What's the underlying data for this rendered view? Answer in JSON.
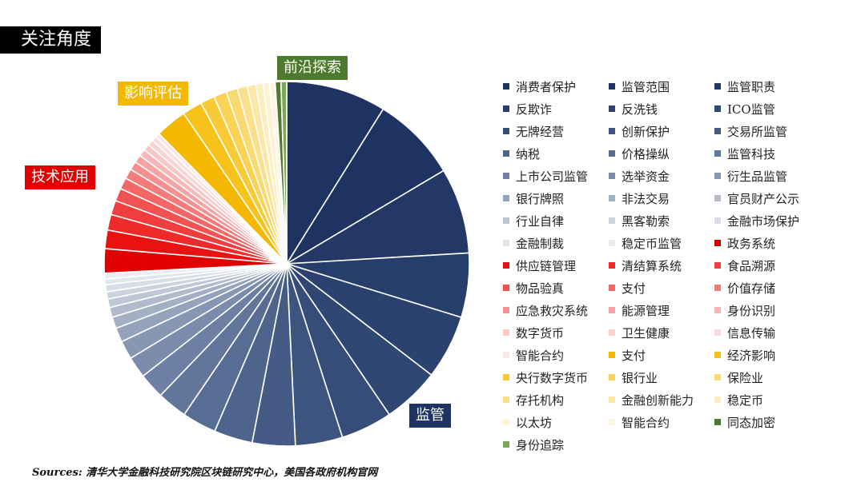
{
  "title": "关注角度",
  "source": "Sources: 清华大学金融科技研究院区块链研究中心，美国各政府机构官网",
  "chart_data": {
    "type": "pie",
    "slices": [
      {
        "label": "消费者保护",
        "value": 7.0,
        "color": "#1f3362"
      },
      {
        "label": "监管范围",
        "value": 6.0,
        "color": "#1f3362"
      },
      {
        "label": "监管职责",
        "value": 6.0,
        "color": "#233866"
      },
      {
        "label": "反欺诈",
        "value": 4.5,
        "color": "#273d6b"
      },
      {
        "label": "反洗钱",
        "value": 4.5,
        "color": "#2b4270"
      },
      {
        "label": "ICO监管",
        "value": 4.0,
        "color": "#304774"
      },
      {
        "label": "无牌经营",
        "value": 3.6,
        "color": "#364d79"
      },
      {
        "label": "创新保护",
        "value": 3.3,
        "color": "#3d547f"
      },
      {
        "label": "交易所监管",
        "value": 3.0,
        "color": "#455b85"
      },
      {
        "label": "纳税",
        "value": 2.7,
        "color": "#4e648c"
      },
      {
        "label": "价格操纵",
        "value": 2.4,
        "color": "#586d93"
      },
      {
        "label": "监管科技",
        "value": 2.1,
        "color": "#62769b"
      },
      {
        "label": "上市公司监管",
        "value": 1.8,
        "color": "#6d80a3"
      },
      {
        "label": "选举资金",
        "value": 1.5,
        "color": "#7a8bab"
      },
      {
        "label": "衍生品监管",
        "value": 1.3,
        "color": "#8796b3"
      },
      {
        "label": "银行牌照",
        "value": 1.0,
        "color": "#95a2bb"
      },
      {
        "label": "非法交易",
        "value": 0.8,
        "color": "#a3afc4"
      },
      {
        "label": "官员财产公示",
        "value": 0.7,
        "color": "#b1bbcd"
      },
      {
        "label": "行业自律",
        "value": 0.6,
        "color": "#bfc7d6"
      },
      {
        "label": "黑客勒索",
        "value": 0.5,
        "color": "#ccd3df"
      },
      {
        "label": "金融市场保护",
        "value": 0.5,
        "color": "#d8dde7"
      },
      {
        "label": "金融制裁",
        "value": 0.4,
        "color": "#e1e5ec"
      },
      {
        "label": "稳定币监管",
        "value": 0.4,
        "color": "#e9ecf1"
      },
      {
        "label": "政务系统",
        "value": 1.7,
        "color": "#e00000"
      },
      {
        "label": "供应链管理",
        "value": 1.3,
        "color": "#e81212"
      },
      {
        "label": "清结算系统",
        "value": 1.1,
        "color": "#ee2a2a"
      },
      {
        "label": "食品溯源",
        "value": 1.0,
        "color": "#f03d3d"
      },
      {
        "label": "物品验真",
        "value": 0.9,
        "color": "#f25252"
      },
      {
        "label": "支付",
        "value": 0.8,
        "color": "#f46767"
      },
      {
        "label": "价值存储",
        "value": 0.7,
        "color": "#f57b7b"
      },
      {
        "label": "应急救灾系统",
        "value": 0.6,
        "color": "#f78f8f"
      },
      {
        "label": "能源管理",
        "value": 0.55,
        "color": "#f8a3a3"
      },
      {
        "label": "身份识别",
        "value": 0.5,
        "color": "#f9b6b6"
      },
      {
        "label": "数字货币",
        "value": 0.45,
        "color": "#fac6c6"
      },
      {
        "label": "卫生健康",
        "value": 0.4,
        "color": "#fbd3d3"
      },
      {
        "label": "信息传输",
        "value": 0.35,
        "color": "#fcdede"
      },
      {
        "label": "智能合约",
        "value": 0.3,
        "color": "#fde8e8"
      },
      {
        "label": "支付",
        "value": 2.2,
        "color": "#f5b800"
      },
      {
        "label": "经济影响",
        "value": 1.4,
        "color": "#f7c21a"
      },
      {
        "label": "央行数字货币",
        "value": 1.0,
        "color": "#f8ca38"
      },
      {
        "label": "银行业",
        "value": 0.9,
        "color": "#f9d256"
      },
      {
        "label": "保险业",
        "value": 0.8,
        "color": "#fad970"
      },
      {
        "label": "存托机构",
        "value": 0.7,
        "color": "#fbe08b"
      },
      {
        "label": "金融创新能力",
        "value": 0.6,
        "color": "#fce7a5"
      },
      {
        "label": "稳定币",
        "value": 0.5,
        "color": "#fdedbf"
      },
      {
        "label": "以太坊",
        "value": 0.45,
        "color": "#fdf2d2"
      },
      {
        "label": "智能合约",
        "value": 0.4,
        "color": "#fef6e0"
      },
      {
        "label": "同态加密",
        "value": 0.4,
        "color": "#4e7a2e"
      },
      {
        "label": "身份追踪",
        "value": 0.4,
        "color": "#7ea659"
      }
    ],
    "groups": [
      {
        "label": "监管",
        "color": "#1f3362"
      },
      {
        "label": "技术应用",
        "color": "#e00000"
      },
      {
        "label": "影响评估",
        "color": "#f5b800"
      },
      {
        "label": "前沿探索",
        "color": "#4e7a2e"
      }
    ]
  }
}
